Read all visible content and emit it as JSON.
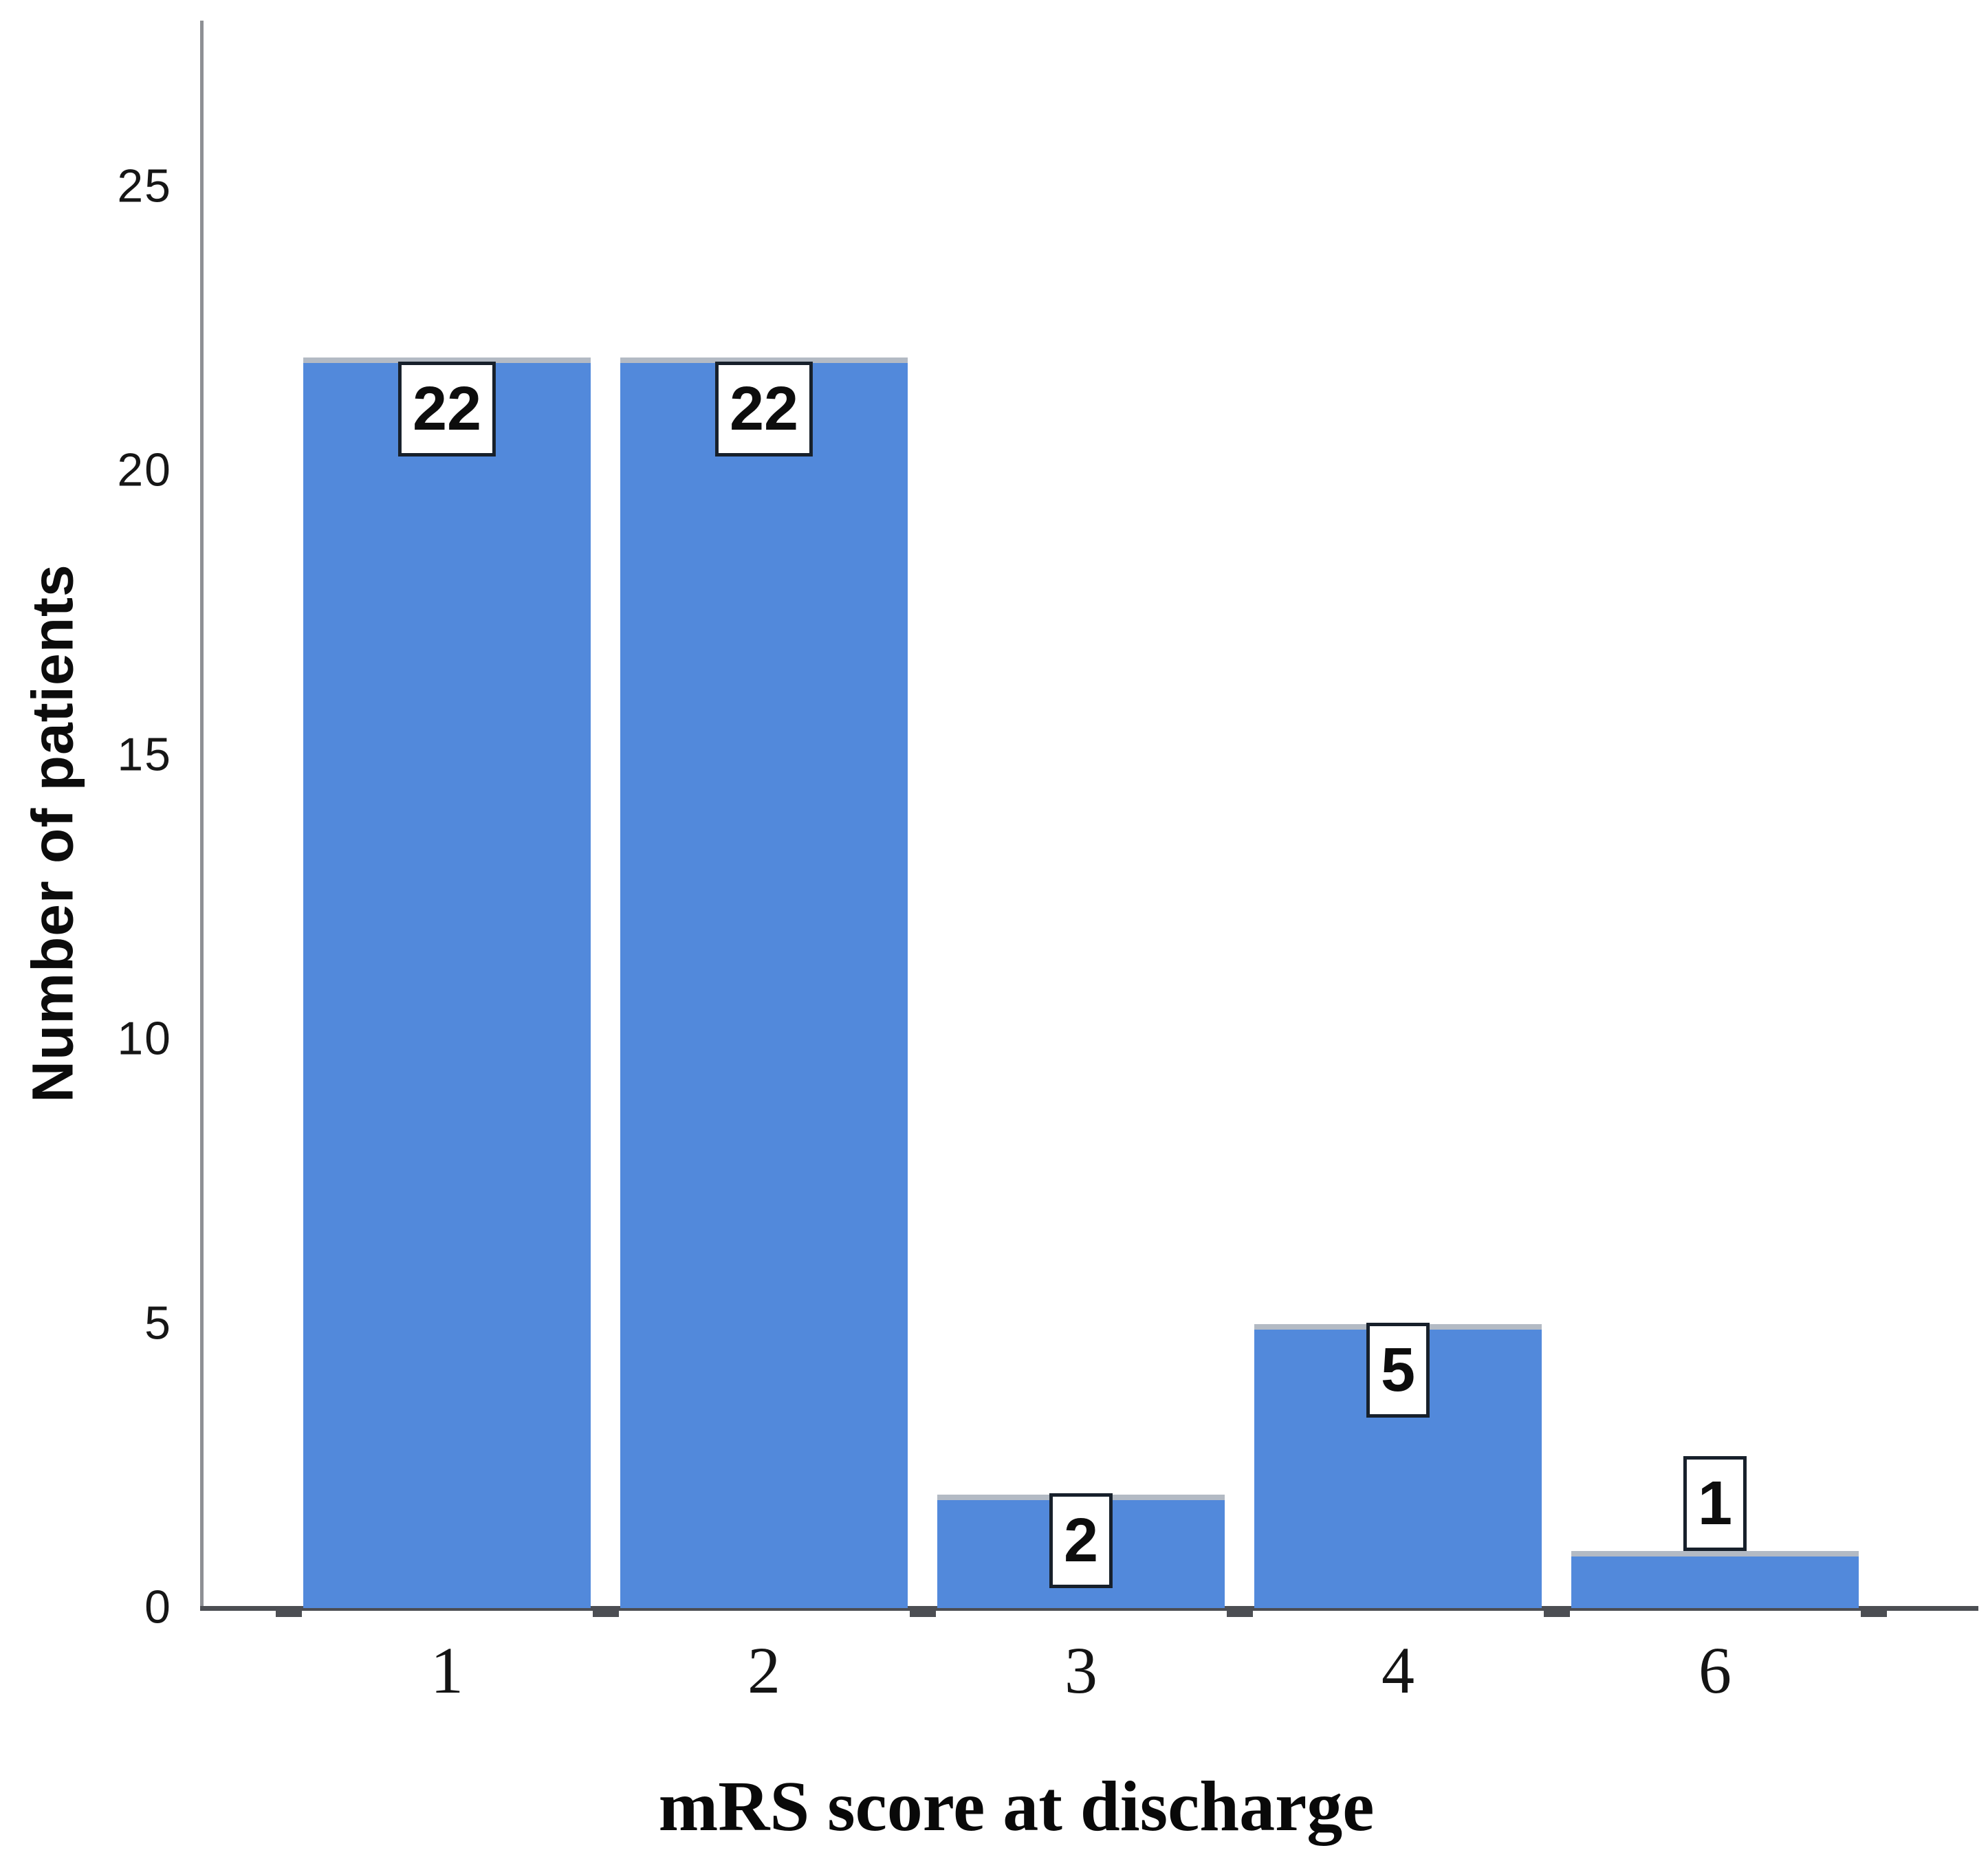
{
  "figure": {
    "background_color": "#ffffff"
  },
  "chart_data": {
    "type": "bar",
    "title": "",
    "xlabel": "mRS score at discharge",
    "ylabel": "Number of patients",
    "categories": [
      "1",
      "2",
      "3",
      "4",
      "6"
    ],
    "values": [
      22,
      22,
      2,
      5,
      1
    ],
    "bar_value_labels": [
      "22",
      "22",
      "2",
      "5",
      "1"
    ],
    "label_placements": [
      "inside",
      "inside",
      "top",
      "top",
      "above"
    ],
    "y_ticks": [
      0,
      5,
      10,
      15,
      20,
      25
    ],
    "ylim": [
      0,
      28
    ],
    "grid": false,
    "legend": null,
    "bar_color": "#5289db",
    "bar_top_edge_color": "#b3bac4",
    "y_axis_line_color": "#8e9094",
    "x_axis_line_color": "#4c4e53",
    "value_label_box": {
      "background": "#ffffff",
      "border_color": "#17202b",
      "text_color": "#0d0d0d"
    }
  }
}
